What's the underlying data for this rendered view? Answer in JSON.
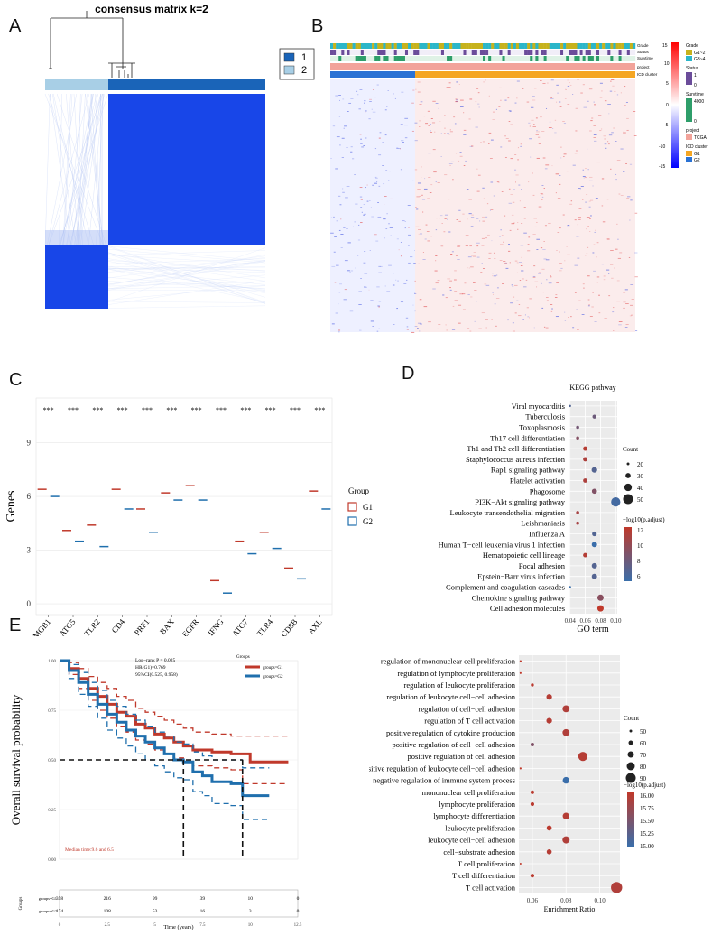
{
  "panels": {
    "A": "A",
    "B": "B",
    "C": "C",
    "D": "D",
    "E": "E"
  },
  "panelA": {
    "title": "consensus matrix k=2",
    "legend": [
      "1",
      "2"
    ],
    "colors": {
      "c1": "#1a64b8",
      "c2": "#a8cfe6"
    }
  },
  "panelB": {
    "rows": [
      "Grade",
      "Status",
      "Survtime",
      "project",
      "ICD cluster"
    ],
    "colorbar_ticks": [
      "15",
      "10",
      "5",
      "0",
      "-5",
      "-10",
      "-15"
    ],
    "legend": {
      "grade_title": "Grade",
      "grade_items": [
        "G1~2",
        "G3~4"
      ],
      "status_title": "Status",
      "status_ticks": [
        "1",
        "0"
      ],
      "survtime_title": "Survtime",
      "survtime_ticks": [
        "4000",
        "0"
      ],
      "project_title": "project",
      "project_items": [
        "TCGA"
      ],
      "icd_title": "ICD cluster",
      "icd_items": [
        "G1",
        "G2"
      ]
    }
  },
  "chart_data": [
    {
      "id": "boxplot",
      "type": "box",
      "ylabel": "Genes",
      "categories": [
        "HMGB1",
        "ATG5",
        "TLR2",
        "CD4",
        "PRF1",
        "BAX",
        "EGFR",
        "IFNG",
        "ATG7",
        "TLR4",
        "CD8B",
        "AXL"
      ],
      "significance": [
        "***",
        "***",
        "***",
        "***",
        "***",
        "***",
        "***",
        "***",
        "***",
        "***",
        "***",
        "***"
      ],
      "yticks": [
        0,
        3,
        6,
        9
      ],
      "ylim": [
        -0.6,
        11.5
      ],
      "legend_title": "Group",
      "series": [
        {
          "name": "G1",
          "color": "#c0392b",
          "medians": [
            6.4,
            4.1,
            4.4,
            6.4,
            5.3,
            6.2,
            6.6,
            1.3,
            3.5,
            4.0,
            2.0,
            6.3
          ],
          "q1": [
            6.0,
            3.8,
            3.6,
            5.8,
            4.6,
            5.7,
            5.9,
            0.6,
            3.2,
            3.5,
            1.4,
            5.6
          ],
          "q3": [
            6.8,
            4.4,
            5.0,
            6.9,
            5.8,
            6.6,
            7.1,
            1.9,
            3.8,
            4.4,
            2.7,
            6.9
          ],
          "lo": [
            5.0,
            3.2,
            2.4,
            4.6,
            3.0,
            4.8,
            4.5,
            0.0,
            2.6,
            2.6,
            0.2,
            4.2
          ],
          "hi": [
            7.6,
            5.0,
            6.4,
            8.0,
            7.0,
            7.6,
            8.2,
            3.2,
            4.4,
            5.4,
            4.3,
            8.2
          ]
        },
        {
          "name": "G2",
          "color": "#1f6fad",
          "medians": [
            6.0,
            3.5,
            3.2,
            5.3,
            4.0,
            5.8,
            5.8,
            0.6,
            2.8,
            3.1,
            1.4,
            5.3
          ],
          "q1": [
            5.5,
            3.1,
            2.6,
            4.8,
            3.4,
            5.4,
            5.2,
            0.3,
            2.4,
            2.5,
            0.8,
            4.6
          ],
          "q3": [
            6.4,
            4.0,
            3.8,
            5.8,
            4.6,
            6.2,
            6.3,
            1.0,
            3.1,
            3.6,
            2.0,
            5.9
          ],
          "lo": [
            4.5,
            2.2,
            1.2,
            3.8,
            2.0,
            4.5,
            4.2,
            0.0,
            1.8,
            1.7,
            0.0,
            3.4
          ],
          "hi": [
            7.4,
            4.8,
            5.2,
            7.1,
            5.9,
            7.2,
            7.4,
            1.9,
            3.8,
            4.6,
            3.4,
            7.3
          ]
        }
      ]
    },
    {
      "id": "kegg",
      "type": "scatter",
      "title": "KEGG pathway",
      "xlabel": "GO term",
      "xticks": [
        "0.04",
        "0.06",
        "0.08",
        "0.10"
      ],
      "xlim": [
        0.038,
        0.102
      ],
      "categories": [
        "Viral myocarditis",
        "Tuberculosis",
        "Toxoplasmosis",
        "Th17 cell differentiation",
        "Th1 and Th2 cell differentiation",
        "Staphylococcus aureus infection",
        "Rap1 signaling pathway",
        "Platelet activation",
        "Phagosome",
        "PI3K−Akt signaling pathway",
        "Leukocyte transendothelial migration",
        "Leishmaniasis",
        "Influenza A",
        "Human T−cell leukemia virus 1 infection",
        "Hematopoietic cell lineage",
        "Focal adhesion",
        "Epstein−Barr virus infection",
        "Complement and coagulation cascades",
        "Chemokine signaling pathway",
        "Cell adhesion molecules"
      ],
      "x": [
        0.04,
        0.072,
        0.05,
        0.05,
        0.06,
        0.06,
        0.072,
        0.06,
        0.072,
        0.1,
        0.05,
        0.05,
        0.072,
        0.072,
        0.06,
        0.072,
        0.072,
        0.04,
        0.08,
        0.08
      ],
      "count": [
        18,
        25,
        22,
        22,
        27,
        27,
        32,
        27,
        30,
        47,
        22,
        22,
        28,
        31,
        27,
        31,
        31,
        18,
        35,
        35
      ],
      "padj": [
        7.2,
        8.3,
        8.6,
        9.3,
        11.4,
        11.0,
        7.3,
        11.0,
        9.2,
        6.6,
        10.7,
        10.7,
        7.2,
        6.2,
        11.3,
        7.3,
        7.3,
        6.2,
        9.5,
        11.8
      ],
      "size_legend_title": "Count",
      "size_legend": [
        20,
        30,
        40,
        50
      ],
      "color_legend_title": "−log10(p.adjust)",
      "color_legend_ticks": [
        "12",
        "10",
        "8",
        "6"
      ]
    },
    {
      "id": "go",
      "type": "scatter",
      "xlabel": "Enrichment Ratio",
      "xticks": [
        "0.06",
        "0.08",
        "0.10"
      ],
      "xlim": [
        0.052,
        0.112
      ],
      "categories": [
        "regulation of mononuclear cell proliferation",
        "regulation of lymphocyte proliferation",
        "regulation of leukocyte proliferation",
        "regulation of leukocyte cell−cell adhesion",
        "regulation of cell−cell adhesion",
        "regulation of T cell activation",
        "positive regulation of cytokine production",
        "positive regulation of cell−cell adhesion",
        "positive regulation of cell adhesion",
        "positive regulation of leukocyte cell−cell adhesion",
        "negative regulation of immune system process",
        "mononuclear cell proliferation",
        "lymphocyte proliferation",
        "lymphocyte differentiation",
        "leukocyte proliferation",
        "leukocyte cell−cell adhesion",
        "cell−substrate adhesion",
        "T cell proliferation",
        "T cell differentiation",
        "T cell activation"
      ],
      "x": [
        0.053,
        0.053,
        0.06,
        0.07,
        0.08,
        0.07,
        0.08,
        0.06,
        0.09,
        0.053,
        0.08,
        0.06,
        0.06,
        0.08,
        0.07,
        0.08,
        0.07,
        0.053,
        0.06,
        0.11
      ],
      "count": [
        46,
        46,
        52,
        66,
        74,
        66,
        74,
        55,
        86,
        46,
        72,
        56,
        56,
        72,
        63,
        75,
        63,
        45,
        56,
        97
      ],
      "padj": [
        16.0,
        16.0,
        15.95,
        15.9,
        15.85,
        15.9,
        15.85,
        15.4,
        15.9,
        16.0,
        14.75,
        15.95,
        15.95,
        15.9,
        15.95,
        15.85,
        15.9,
        16.0,
        15.95,
        15.85
      ],
      "size_legend_title": "Count",
      "size_legend": [
        50,
        60,
        70,
        80,
        90
      ],
      "color_legend_title": "−log10(p.adjust)",
      "color_legend_ticks": [
        "16.00",
        "15.75",
        "15.50",
        "15.25",
        "15.00"
      ]
    },
    {
      "id": "km",
      "type": "line",
      "ylabel": "Overall survival probability",
      "xlabel": "Time (years)",
      "xticks": [
        "0",
        "2.5",
        "5",
        "7.5",
        "10",
        "12.5"
      ],
      "yticks": [
        "0.00",
        "0.25",
        "0.50",
        "0.75",
        "1.00"
      ],
      "xlim": [
        0,
        12.5
      ],
      "ylim": [
        0,
        1.0
      ],
      "legend_title": "Groups",
      "series": [
        {
          "name": "groups=G1",
          "color": "#c0392b",
          "x": [
            0,
            0.5,
            1.0,
            1.5,
            2.0,
            2.5,
            3.0,
            3.5,
            4.0,
            4.5,
            5.0,
            5.5,
            6.0,
            6.5,
            7.0,
            8.0,
            9.0,
            9.6,
            10.0,
            12.0
          ],
          "y": [
            1.0,
            0.96,
            0.91,
            0.86,
            0.82,
            0.78,
            0.74,
            0.72,
            0.68,
            0.66,
            0.63,
            0.61,
            0.59,
            0.57,
            0.55,
            0.54,
            0.53,
            0.53,
            0.49,
            0.49
          ],
          "upper": [
            1.0,
            0.99,
            0.96,
            0.92,
            0.89,
            0.86,
            0.82,
            0.8,
            0.76,
            0.74,
            0.72,
            0.7,
            0.68,
            0.66,
            0.64,
            0.63,
            0.62,
            0.62,
            0.62,
            0.62
          ],
          "lower": [
            1.0,
            0.93,
            0.86,
            0.8,
            0.75,
            0.71,
            0.67,
            0.64,
            0.6,
            0.58,
            0.55,
            0.53,
            0.51,
            0.49,
            0.47,
            0.46,
            0.45,
            0.38,
            0.38,
            0.38
          ]
        },
        {
          "name": "groups=G2",
          "color": "#1f6fad",
          "x": [
            0,
            0.5,
            1.0,
            1.5,
            2.0,
            2.5,
            3.0,
            3.5,
            4.0,
            4.5,
            5.0,
            5.5,
            6.0,
            6.5,
            7.0,
            7.5,
            8.0,
            9.0,
            9.6,
            10.0,
            11.0
          ],
          "y": [
            1.0,
            0.95,
            0.89,
            0.83,
            0.78,
            0.73,
            0.69,
            0.65,
            0.62,
            0.59,
            0.56,
            0.53,
            0.5,
            0.49,
            0.44,
            0.42,
            0.39,
            0.38,
            0.32,
            0.32,
            0.32
          ],
          "upper": [
            1.0,
            0.98,
            0.94,
            0.89,
            0.85,
            0.8,
            0.77,
            0.73,
            0.7,
            0.67,
            0.64,
            0.62,
            0.59,
            0.58,
            0.54,
            0.52,
            0.5,
            0.5,
            0.46,
            0.46,
            0.46
          ],
          "lower": [
            1.0,
            0.91,
            0.83,
            0.77,
            0.71,
            0.65,
            0.61,
            0.57,
            0.53,
            0.5,
            0.47,
            0.44,
            0.41,
            0.4,
            0.34,
            0.32,
            0.28,
            0.27,
            0.2,
            0.2,
            0.2
          ]
        }
      ],
      "annotations": [
        "Log−rank P = 0.025",
        "HR(G1)=0.769",
        "95%CI(0.525, 0.958)"
      ],
      "median_text": "Median time:9.6 and 6.5",
      "median_times": [
        9.6,
        6.5
      ],
      "risk_table": {
        "ylabel": "Groups",
        "rows": [
          {
            "label": "groups=G1",
            "values": [
              "358",
              "216",
              "99",
              "39",
              "10",
              "0"
            ]
          },
          {
            "label": "groups=G2",
            "values": [
              "174",
              "108",
              "53",
              "16",
              "3",
              "0"
            ]
          }
        ]
      }
    }
  ]
}
